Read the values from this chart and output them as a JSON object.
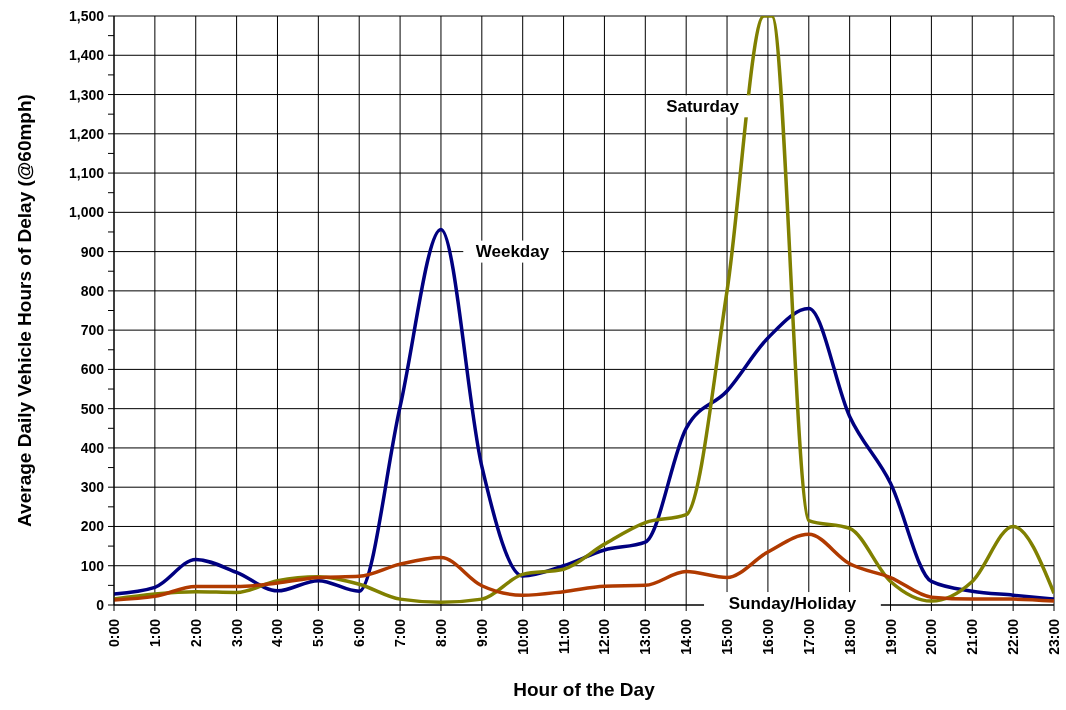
{
  "chart_data": {
    "type": "line",
    "xlabel": "Hour of the Day",
    "ylabel": "Average Daily Vehicle Hours of Delay (@60mph)",
    "x": [
      0,
      1,
      2,
      3,
      4,
      5,
      6,
      7,
      8,
      9,
      10,
      11,
      12,
      13,
      14,
      15,
      16,
      17,
      18,
      19,
      20,
      21,
      22,
      23
    ],
    "series": [
      {
        "name": "Weekday",
        "color": "#000080",
        "values": [
          28,
          45,
          116,
          83,
          36,
          62,
          35,
          505,
          956,
          353,
          74,
          100,
          140,
          160,
          450,
          545,
          680,
          755,
          480,
          310,
          60,
          35,
          25,
          15
        ]
      },
      {
        "name": "Saturday",
        "color": "#808000",
        "x": [
          0,
          1,
          2,
          3,
          4,
          5,
          6,
          7,
          8,
          9,
          10,
          11,
          12,
          13,
          14,
          15,
          15.9,
          16.1,
          17,
          18,
          19,
          20,
          21,
          22,
          23
        ],
        "values": [
          15,
          28,
          34,
          32,
          62,
          72,
          53,
          15,
          7,
          15,
          78,
          91,
          155,
          210,
          230,
          800,
          1500,
          1500,
          215,
          195,
          60,
          10,
          60,
          200,
          30
        ]
      },
      {
        "name": "Sunday/Holiday",
        "color": "#b03a00",
        "values": [
          13,
          22,
          47,
          47,
          56,
          70,
          73,
          104,
          121,
          49,
          25,
          34,
          48,
          50,
          85,
          70,
          135,
          180,
          105,
          70,
          20,
          15,
          15,
          10
        ]
      }
    ],
    "xlim": [
      0,
      23
    ],
    "xticks": [
      {
        "value": 0,
        "label": "0:00"
      },
      {
        "value": 1,
        "label": "1:00"
      },
      {
        "value": 2,
        "label": "2:00"
      },
      {
        "value": 3,
        "label": "3:00"
      },
      {
        "value": 4,
        "label": "4:00"
      },
      {
        "value": 5,
        "label": "5:00"
      },
      {
        "value": 6,
        "label": "6:00"
      },
      {
        "value": 7,
        "label": "7:00"
      },
      {
        "value": 8,
        "label": "8:00"
      },
      {
        "value": 9,
        "label": "9:00"
      },
      {
        "value": 10,
        "label": "10:00"
      },
      {
        "value": 11,
        "label": "11:00"
      },
      {
        "value": 12,
        "label": "12:00"
      },
      {
        "value": 13,
        "label": "13:00"
      },
      {
        "value": 14,
        "label": "14:00"
      },
      {
        "value": 15,
        "label": "15:00"
      },
      {
        "value": 16,
        "label": "16:00"
      },
      {
        "value": 17,
        "label": "17:00"
      },
      {
        "value": 18,
        "label": "18:00"
      },
      {
        "value": 19,
        "label": "19:00"
      },
      {
        "value": 20,
        "label": "20:00"
      },
      {
        "value": 21,
        "label": "21:00"
      },
      {
        "value": 22,
        "label": "22:00"
      },
      {
        "value": 23,
        "label": "23:00"
      }
    ],
    "ylim": [
      0,
      1500
    ],
    "yticks": [
      0,
      {
        "value": 50,
        "label": null
      },
      100,
      {
        "value": 150,
        "label": null
      },
      200,
      {
        "value": 250,
        "label": null
      },
      300,
      {
        "value": 350,
        "label": null
      },
      400,
      {
        "value": 450,
        "label": null
      },
      500,
      {
        "value": 550,
        "label": null
      },
      600,
      {
        "value": 650,
        "label": null
      },
      700,
      {
        "value": 750,
        "label": null
      },
      800,
      {
        "value": 850,
        "label": null
      },
      900,
      {
        "value": 950,
        "label": null
      },
      {
        "value": 1000,
        "label": "1,000"
      },
      {
        "value": 1050,
        "label": null
      },
      {
        "value": 1100,
        "label": "1,100"
      },
      {
        "value": 1150,
        "label": null
      },
      {
        "value": 1200,
        "label": "1,200"
      },
      {
        "value": 1250,
        "label": null
      },
      {
        "value": 1300,
        "label": "1,300"
      },
      {
        "value": 1350,
        "label": null
      },
      {
        "value": 1400,
        "label": "1,400"
      },
      {
        "value": 1450,
        "label": null
      },
      {
        "value": 1500,
        "label": "1,500"
      }
    ],
    "grid": true,
    "marker": "none",
    "line_style": "solid"
  }
}
